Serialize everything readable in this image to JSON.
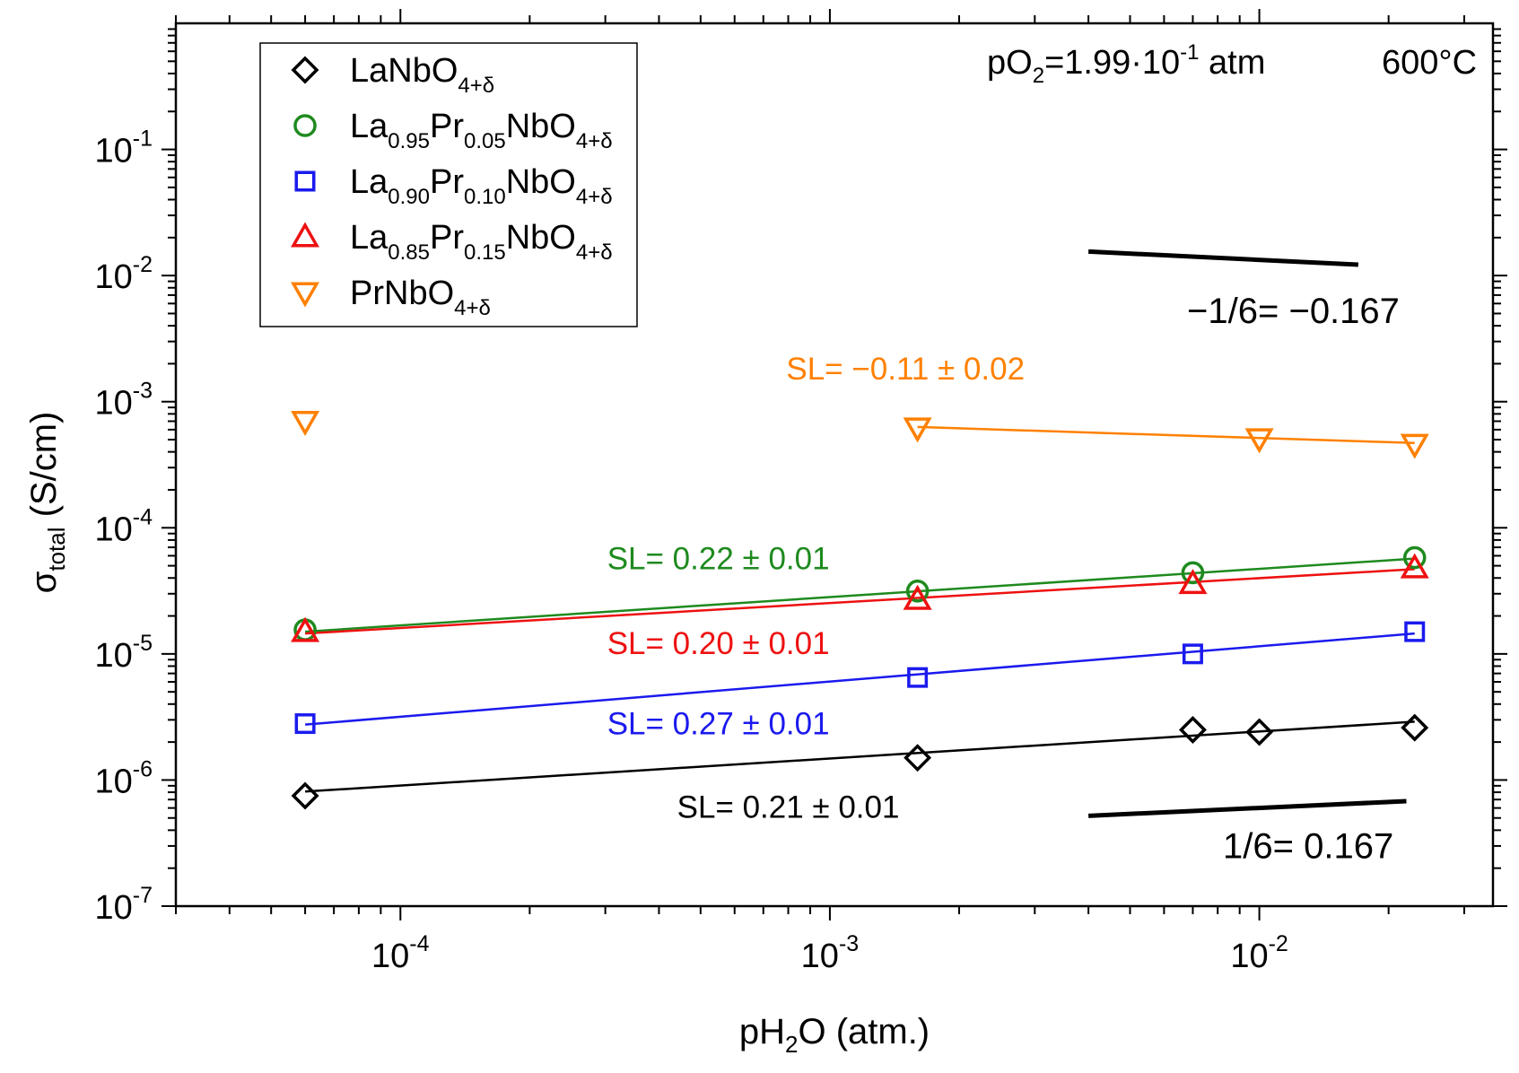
{
  "chart_data": {
    "type": "scatter",
    "xscale": "log",
    "yscale": "log",
    "xlim": [
      3e-05,
      0.035
    ],
    "ylim": [
      1e-07,
      1
    ],
    "xlabel": {
      "base": "pH",
      "sub": "2",
      "rest": "O (atm.)"
    },
    "ylabel": {
      "base": "σ",
      "sub": "total",
      "rest": " (S/cm)"
    },
    "x_ticks": [
      {
        "value": 0.0001,
        "base": "10",
        "exp": "-4"
      },
      {
        "value": 0.001,
        "base": "10",
        "exp": "-3"
      },
      {
        "value": 0.01,
        "base": "10",
        "exp": "-2"
      }
    ],
    "y_ticks": [
      {
        "value": 1e-07,
        "base": "10",
        "exp": "-7"
      },
      {
        "value": 1e-06,
        "base": "10",
        "exp": "-6"
      },
      {
        "value": 1e-05,
        "base": "10",
        "exp": "-5"
      },
      {
        "value": 0.0001,
        "base": "10",
        "exp": "-4"
      },
      {
        "value": 0.001,
        "base": "10",
        "exp": "-3"
      },
      {
        "value": 0.01,
        "base": "10",
        "exp": "-2"
      },
      {
        "value": 0.1,
        "base": "10",
        "exp": "-1"
      }
    ],
    "conditions": {
      "po2": {
        "pre": "pO",
        "sub": "2",
        "mid": "=1.99·10",
        "exp": "-1",
        "post": " atm"
      },
      "temperature": "600°C"
    },
    "series": [
      {
        "name": "LaNbO4+δ",
        "legend": [
          {
            "t": "LaNbO"
          },
          {
            "t": "4+δ",
            "sub": true
          }
        ],
        "color": "#000000",
        "marker": "diamond",
        "x": [
          6e-05,
          0.0016,
          0.007,
          0.01,
          0.023
        ],
        "y": [
          7.5e-07,
          1.5e-06,
          2.5e-06,
          2.4e-06,
          2.6e-06
        ],
        "fit": {
          "x": [
            6e-05,
            0.023
          ],
          "y": [
            8.1e-07,
            2.9e-06
          ]
        },
        "slope_label": "SL= 0.21 ± 0.01",
        "label_anchor": [
          0.0008,
          5e-07
        ]
      },
      {
        "name": "La0.95Pr0.05NbO4+δ",
        "legend": [
          {
            "t": "La"
          },
          {
            "t": "0.95",
            "sub": true
          },
          {
            "t": "Pr"
          },
          {
            "t": "0.05",
            "sub": true
          },
          {
            "t": "NbO"
          },
          {
            "t": "4+δ",
            "sub": true
          }
        ],
        "color": "#1e8a1e",
        "marker": "circle",
        "x": [
          6e-05,
          0.0016,
          0.007,
          0.023
        ],
        "y": [
          1.55e-05,
          3.15e-05,
          4.4e-05,
          5.8e-05
        ],
        "fit": {
          "x": [
            6e-05,
            0.023
          ],
          "y": [
            1.5e-05,
            5.7e-05
          ]
        },
        "slope_label": "SL= 0.22 ± 0.01",
        "label_anchor": [
          0.00055,
          4.7e-05
        ]
      },
      {
        "name": "La0.90Pr0.10NbO4+δ",
        "legend": [
          {
            "t": "La"
          },
          {
            "t": "0.90",
            "sub": true
          },
          {
            "t": "Pr"
          },
          {
            "t": "0.10",
            "sub": true
          },
          {
            "t": "NbO"
          },
          {
            "t": "4+δ",
            "sub": true
          }
        ],
        "color": "#1a1aee",
        "marker": "square",
        "x": [
          6e-05,
          0.0016,
          0.007,
          0.023
        ],
        "y": [
          2.8e-06,
          6.5e-06,
          1e-05,
          1.5e-05
        ],
        "fit": {
          "x": [
            6e-05,
            0.023
          ],
          "y": [
            2.75e-06,
            1.45e-05
          ]
        },
        "slope_label": "SL= 0.27 ± 0.01",
        "label_anchor": [
          0.00055,
          2.3e-06
        ]
      },
      {
        "name": "La0.85Pr0.15NbO4+δ",
        "legend": [
          {
            "t": "La"
          },
          {
            "t": "0.85",
            "sub": true
          },
          {
            "t": "Pr"
          },
          {
            "t": "0.15",
            "sub": true
          },
          {
            "t": "NbO"
          },
          {
            "t": "4+δ",
            "sub": true
          }
        ],
        "color": "#ee1111",
        "marker": "triangle-up",
        "x": [
          6e-05,
          0.0016,
          0.007,
          0.023
        ],
        "y": [
          1.5e-05,
          2.7e-05,
          3.6e-05,
          4.8e-05
        ],
        "fit": {
          "x": [
            6e-05,
            0.023
          ],
          "y": [
            1.45e-05,
            4.7e-05
          ]
        },
        "slope_label": "SL= 0.20 ± 0.01",
        "label_anchor": [
          0.00055,
          1e-05
        ]
      },
      {
        "name": "PrNbO4+δ",
        "legend": [
          {
            "t": "PrNbO"
          },
          {
            "t": "4+δ",
            "sub": true
          }
        ],
        "color": "#ff8000",
        "marker": "triangle-down",
        "x": [
          6e-05,
          0.0016,
          0.01,
          0.023
        ],
        "y": [
          0.0007,
          0.00062,
          0.00051,
          0.00046
        ],
        "fit": {
          "x": [
            0.0016,
            0.023
          ],
          "y": [
            0.00063,
            0.00047
          ]
        },
        "slope_label": "SL= −0.11 ± 0.02",
        "label_anchor": [
          0.0015,
          0.0015
        ]
      }
    ],
    "reference_lines": [
      {
        "label": "−1/6= −0.167",
        "slope": -0.1667,
        "x": [
          0.004,
          0.017
        ],
        "y": [
          0.0155,
          0.0122
        ],
        "label_anchor": [
          0.012,
          0.0042
        ]
      },
      {
        "label": "1/6= 0.167",
        "slope": 0.1667,
        "x": [
          0.004,
          0.022
        ],
        "y": [
          5.2e-07,
          6.8e-07
        ],
        "label_anchor": [
          0.013,
          2.4e-07
        ]
      }
    ],
    "legend_position": "top-left",
    "grid": false
  }
}
